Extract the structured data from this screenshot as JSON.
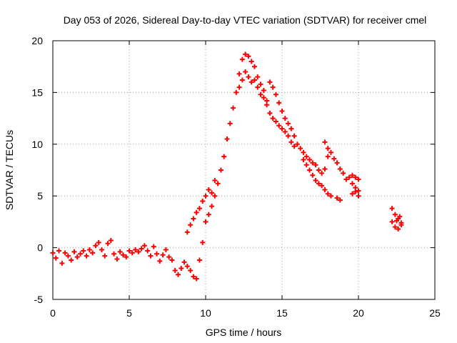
{
  "chart_data": {
    "type": "scatter",
    "title": "Day 053 of 2026, Sidereal Day-to-day VTEC variation (SDTVAR) for receiver cmel",
    "xlabel": "GPS time / hours",
    "ylabel": "SDTVAR / TECUs",
    "xlim": [
      0,
      25
    ],
    "ylim": [
      -5,
      20
    ],
    "xticks": [
      "0",
      "5",
      "10",
      "15",
      "20",
      "25"
    ],
    "yticks": [
      "-5",
      "0",
      "5",
      "10",
      "15",
      "20"
    ],
    "grid": true,
    "marker": "plus",
    "color": "#ff0000",
    "series": [
      {
        "name": "SDTVAR",
        "points": [
          [
            0.0,
            -0.5
          ],
          [
            0.2,
            -1.0
          ],
          [
            0.4,
            -0.3
          ],
          [
            0.6,
            -1.5
          ],
          [
            0.8,
            -0.5
          ],
          [
            1.0,
            -0.8
          ],
          [
            1.2,
            -1.2
          ],
          [
            1.4,
            -0.4
          ],
          [
            1.6,
            -0.9
          ],
          [
            1.8,
            -0.6
          ],
          [
            2.0,
            -0.3
          ],
          [
            2.2,
            -0.8
          ],
          [
            2.4,
            -0.2
          ],
          [
            2.6,
            -0.5
          ],
          [
            2.8,
            0.2
          ],
          [
            3.0,
            0.5
          ],
          [
            3.2,
            -0.2
          ],
          [
            3.4,
            -0.8
          ],
          [
            3.6,
            0.4
          ],
          [
            3.8,
            0.7
          ],
          [
            4.0,
            -0.6
          ],
          [
            4.2,
            -1.1
          ],
          [
            4.4,
            -0.4
          ],
          [
            4.6,
            -0.7
          ],
          [
            4.8,
            -0.9
          ],
          [
            5.0,
            -0.3
          ],
          [
            5.2,
            -0.5
          ],
          [
            5.4,
            -0.2
          ],
          [
            5.6,
            -0.4
          ],
          [
            5.8,
            -0.1
          ],
          [
            6.0,
            0.2
          ],
          [
            6.2,
            -0.3
          ],
          [
            6.4,
            -0.8
          ],
          [
            6.6,
            0.1
          ],
          [
            6.8,
            -0.6
          ],
          [
            7.0,
            -1.3
          ],
          [
            7.2,
            -0.7
          ],
          [
            7.4,
            -0.2
          ],
          [
            7.6,
            -0.9
          ],
          [
            7.8,
            -1.2
          ],
          [
            8.0,
            -2.2
          ],
          [
            8.2,
            -2.6
          ],
          [
            8.4,
            -2.0
          ],
          [
            8.6,
            -1.4
          ],
          [
            8.8,
            -1.8
          ],
          [
            9.0,
            -2.2
          ],
          [
            9.2,
            -2.8
          ],
          [
            9.4,
            -3.0
          ],
          [
            9.6,
            -1.2
          ],
          [
            9.8,
            0.5
          ],
          [
            8.8,
            1.5
          ],
          [
            9.0,
            2.2
          ],
          [
            9.2,
            2.8
          ],
          [
            9.4,
            3.4
          ],
          [
            9.6,
            3.8
          ],
          [
            9.8,
            4.5
          ],
          [
            10.0,
            5.0
          ],
          [
            10.2,
            5.6
          ],
          [
            10.4,
            5.3
          ],
          [
            10.6,
            6.5
          ],
          [
            10.0,
            2.5
          ],
          [
            10.2,
            3.2
          ],
          [
            10.4,
            4.0
          ],
          [
            10.6,
            5.0
          ],
          [
            10.8,
            6.2
          ],
          [
            11.0,
            7.5
          ],
          [
            11.2,
            8.8
          ],
          [
            11.4,
            10.5
          ],
          [
            11.6,
            12.0
          ],
          [
            11.8,
            13.5
          ],
          [
            12.0,
            15.0
          ],
          [
            12.2,
            16.8
          ],
          [
            12.4,
            18.2
          ],
          [
            12.6,
            18.7
          ],
          [
            12.8,
            18.5
          ],
          [
            13.0,
            18.0
          ],
          [
            13.2,
            17.5
          ],
          [
            13.4,
            16.5
          ],
          [
            13.6,
            15.8
          ],
          [
            13.8,
            15.2
          ],
          [
            12.2,
            15.5
          ],
          [
            12.4,
            16.2
          ],
          [
            12.6,
            17.0
          ],
          [
            12.8,
            16.5
          ],
          [
            13.0,
            16.0
          ],
          [
            13.2,
            16.2
          ],
          [
            13.4,
            15.5
          ],
          [
            13.6,
            14.8
          ],
          [
            13.8,
            14.5
          ],
          [
            14.0,
            14.2
          ],
          [
            14.2,
            16.0
          ],
          [
            14.4,
            15.5
          ],
          [
            14.6,
            14.8
          ],
          [
            14.8,
            14.0
          ],
          [
            15.0,
            13.2
          ],
          [
            15.2,
            12.5
          ],
          [
            15.4,
            12.0
          ],
          [
            15.6,
            11.5
          ],
          [
            15.8,
            10.8
          ],
          [
            16.0,
            10.0
          ],
          [
            14.0,
            13.8
          ],
          [
            14.2,
            13.0
          ],
          [
            14.4,
            12.5
          ],
          [
            14.6,
            12.2
          ],
          [
            14.8,
            11.8
          ],
          [
            15.0,
            11.5
          ],
          [
            15.2,
            11.2
          ],
          [
            15.4,
            10.8
          ],
          [
            15.6,
            10.2
          ],
          [
            15.8,
            9.8
          ],
          [
            16.2,
            9.6
          ],
          [
            16.4,
            9.2
          ],
          [
            16.6,
            8.8
          ],
          [
            16.8,
            8.5
          ],
          [
            17.0,
            8.2
          ],
          [
            17.2,
            8.0
          ],
          [
            17.4,
            7.5
          ],
          [
            17.6,
            7.2
          ],
          [
            17.8,
            7.6
          ],
          [
            18.0,
            8.8
          ],
          [
            16.4,
            8.5
          ],
          [
            16.6,
            8.0
          ],
          [
            16.8,
            7.5
          ],
          [
            17.0,
            7.0
          ],
          [
            17.2,
            6.5
          ],
          [
            17.4,
            6.2
          ],
          [
            17.6,
            6.0
          ],
          [
            17.8,
            5.6
          ],
          [
            18.0,
            5.2
          ],
          [
            18.2,
            5.0
          ],
          [
            17.8,
            10.2
          ],
          [
            18.0,
            9.6
          ],
          [
            18.2,
            9.2
          ],
          [
            18.4,
            8.6
          ],
          [
            18.6,
            8.2
          ],
          [
            18.8,
            7.6
          ],
          [
            19.0,
            7.2
          ],
          [
            19.2,
            6.6
          ],
          [
            19.4,
            6.8
          ],
          [
            19.6,
            7.0
          ],
          [
            19.8,
            6.8
          ],
          [
            20.0,
            6.6
          ],
          [
            19.6,
            6.2
          ],
          [
            19.8,
            5.8
          ],
          [
            20.0,
            5.5
          ],
          [
            19.6,
            5.2
          ],
          [
            19.8,
            5.4
          ],
          [
            20.0,
            5.0
          ],
          [
            18.6,
            4.8
          ],
          [
            18.8,
            4.6
          ],
          [
            22.2,
            3.8
          ],
          [
            22.4,
            3.2
          ],
          [
            22.6,
            2.8
          ],
          [
            22.8,
            2.4
          ],
          [
            22.4,
            2.0
          ],
          [
            22.6,
            1.8
          ],
          [
            22.8,
            2.2
          ],
          [
            22.2,
            2.5
          ],
          [
            22.5,
            2.6
          ],
          [
            22.7,
            3.0
          ]
        ]
      }
    ]
  }
}
